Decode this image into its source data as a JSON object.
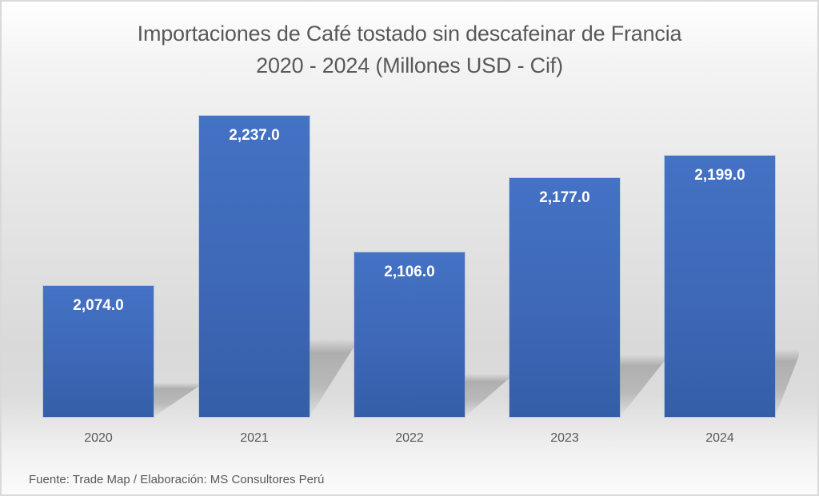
{
  "chart_data": {
    "type": "bar",
    "title": "Importaciones de Café tostado sin descafeinar de Francia",
    "subtitle": "2020 - 2024 (Millones USD - Cif)",
    "categories": [
      "2020",
      "2021",
      "2022",
      "2023",
      "2024"
    ],
    "values": [
      2074.0,
      2237.0,
      2106.0,
      2177.0,
      2199.0
    ],
    "data_labels": [
      "2,074.0",
      "2,237.0",
      "2,106.0",
      "2,177.0",
      "2,199.0"
    ],
    "xlabel": "",
    "ylabel": "Millones USD - Cif",
    "ylim": [
      1950,
      2250
    ],
    "grid": false,
    "legend": "none",
    "bar_color": "#4472c4",
    "source_note": "Fuente: Trade Map / Elaboración: MS Consultores Perú"
  },
  "title": {
    "line1": "Importaciones de Café tostado sin descafeinar de Francia",
    "line2": "2020 - 2024 (Millones USD - Cif)"
  },
  "footer": {
    "source": "Fuente: Trade Map / Elaboración: MS Consultores Perú"
  }
}
